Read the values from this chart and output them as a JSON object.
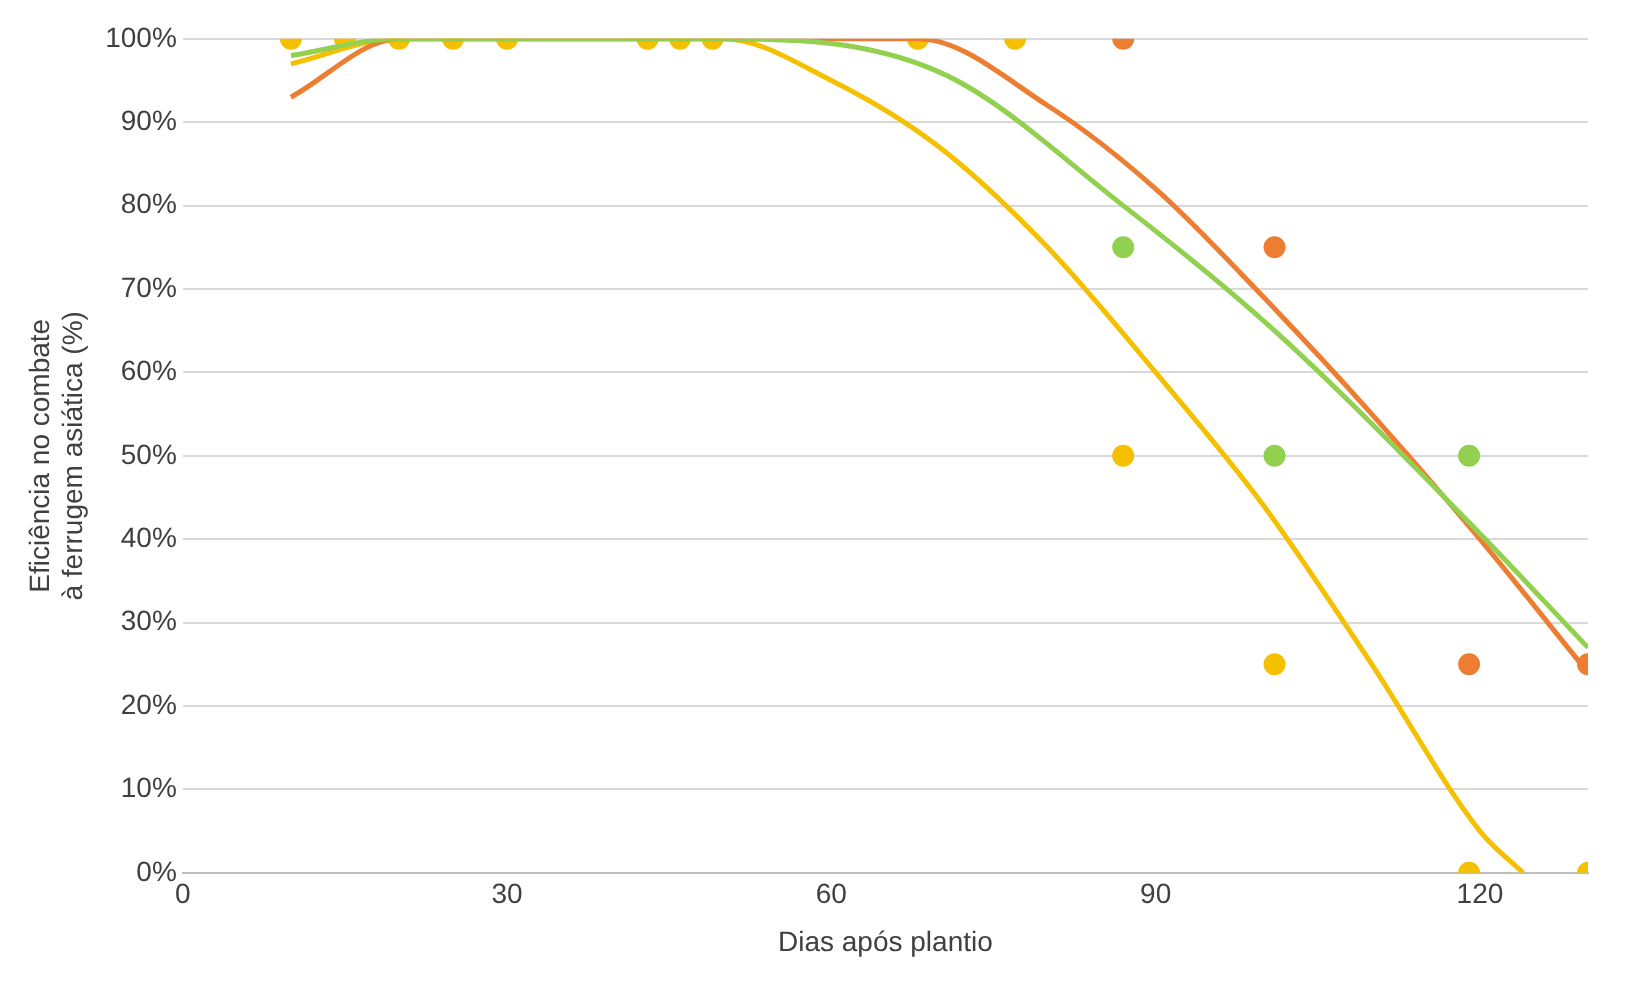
{
  "chart_data": {
    "type": "scatter",
    "xlabel": "Dias após plantio",
    "ylabel": "Eficiência no combate à ferrugem asiática (%)",
    "xlim": [
      0,
      130
    ],
    "xticks": [
      0,
      30,
      60,
      90,
      120
    ],
    "ylim": [
      0,
      100
    ],
    "yticks": [
      {
        "value": 0,
        "label": "0%"
      },
      {
        "value": 10,
        "label": "10%"
      },
      {
        "value": 20,
        "label": "20%"
      },
      {
        "value": 30,
        "label": "30%"
      },
      {
        "value": 40,
        "label": "40%"
      },
      {
        "value": 50,
        "label": "50%"
      },
      {
        "value": 60,
        "label": "60%"
      },
      {
        "value": 70,
        "label": "70%"
      },
      {
        "value": 80,
        "label": "80%"
      },
      {
        "value": 90,
        "label": "90%"
      },
      {
        "value": 100,
        "label": "100%"
      }
    ],
    "grid": "y",
    "legend": false,
    "marker": "circle",
    "series": [
      {
        "type": "line",
        "marker": "none",
        "color": "#92d050",
        "x": [
          10,
          20,
          35,
          50,
          70,
          87,
          101,
          119,
          130
        ],
        "values": [
          98,
          100,
          100,
          100,
          96,
          80,
          65,
          42,
          27
        ]
      },
      {
        "type": "line",
        "marker": "none",
        "color": "#ed7d31",
        "x": [
          10,
          20,
          40,
          68,
          80,
          90,
          100,
          110,
          120,
          130
        ],
        "values": [
          93,
          100,
          100,
          100,
          92,
          82,
          69,
          55,
          40,
          24
        ]
      },
      {
        "type": "line",
        "marker": "none",
        "color": "#f5c000",
        "x": [
          10,
          20,
          35,
          50,
          60,
          70,
          80,
          90,
          100,
          110,
          120,
          124
        ],
        "values": [
          97,
          100,
          100,
          100,
          95,
          87,
          75,
          60,
          44,
          25,
          5,
          0
        ]
      },
      {
        "color": "#92d050",
        "x": [
          87,
          101,
          119
        ],
        "values": [
          75,
          50,
          50
        ]
      },
      {
        "color": "#ed7d31",
        "x": [
          87,
          101,
          119,
          130
        ],
        "values": [
          100,
          75,
          25,
          25
        ]
      },
      {
        "color": "#f5c000",
        "x": [
          10,
          15,
          20,
          25,
          30,
          43,
          46,
          49,
          68,
          77,
          87,
          101,
          119,
          130
        ],
        "values": [
          100,
          100,
          100,
          100,
          100,
          100,
          100,
          100,
          100,
          100,
          50,
          25,
          0,
          0
        ]
      }
    ]
  }
}
